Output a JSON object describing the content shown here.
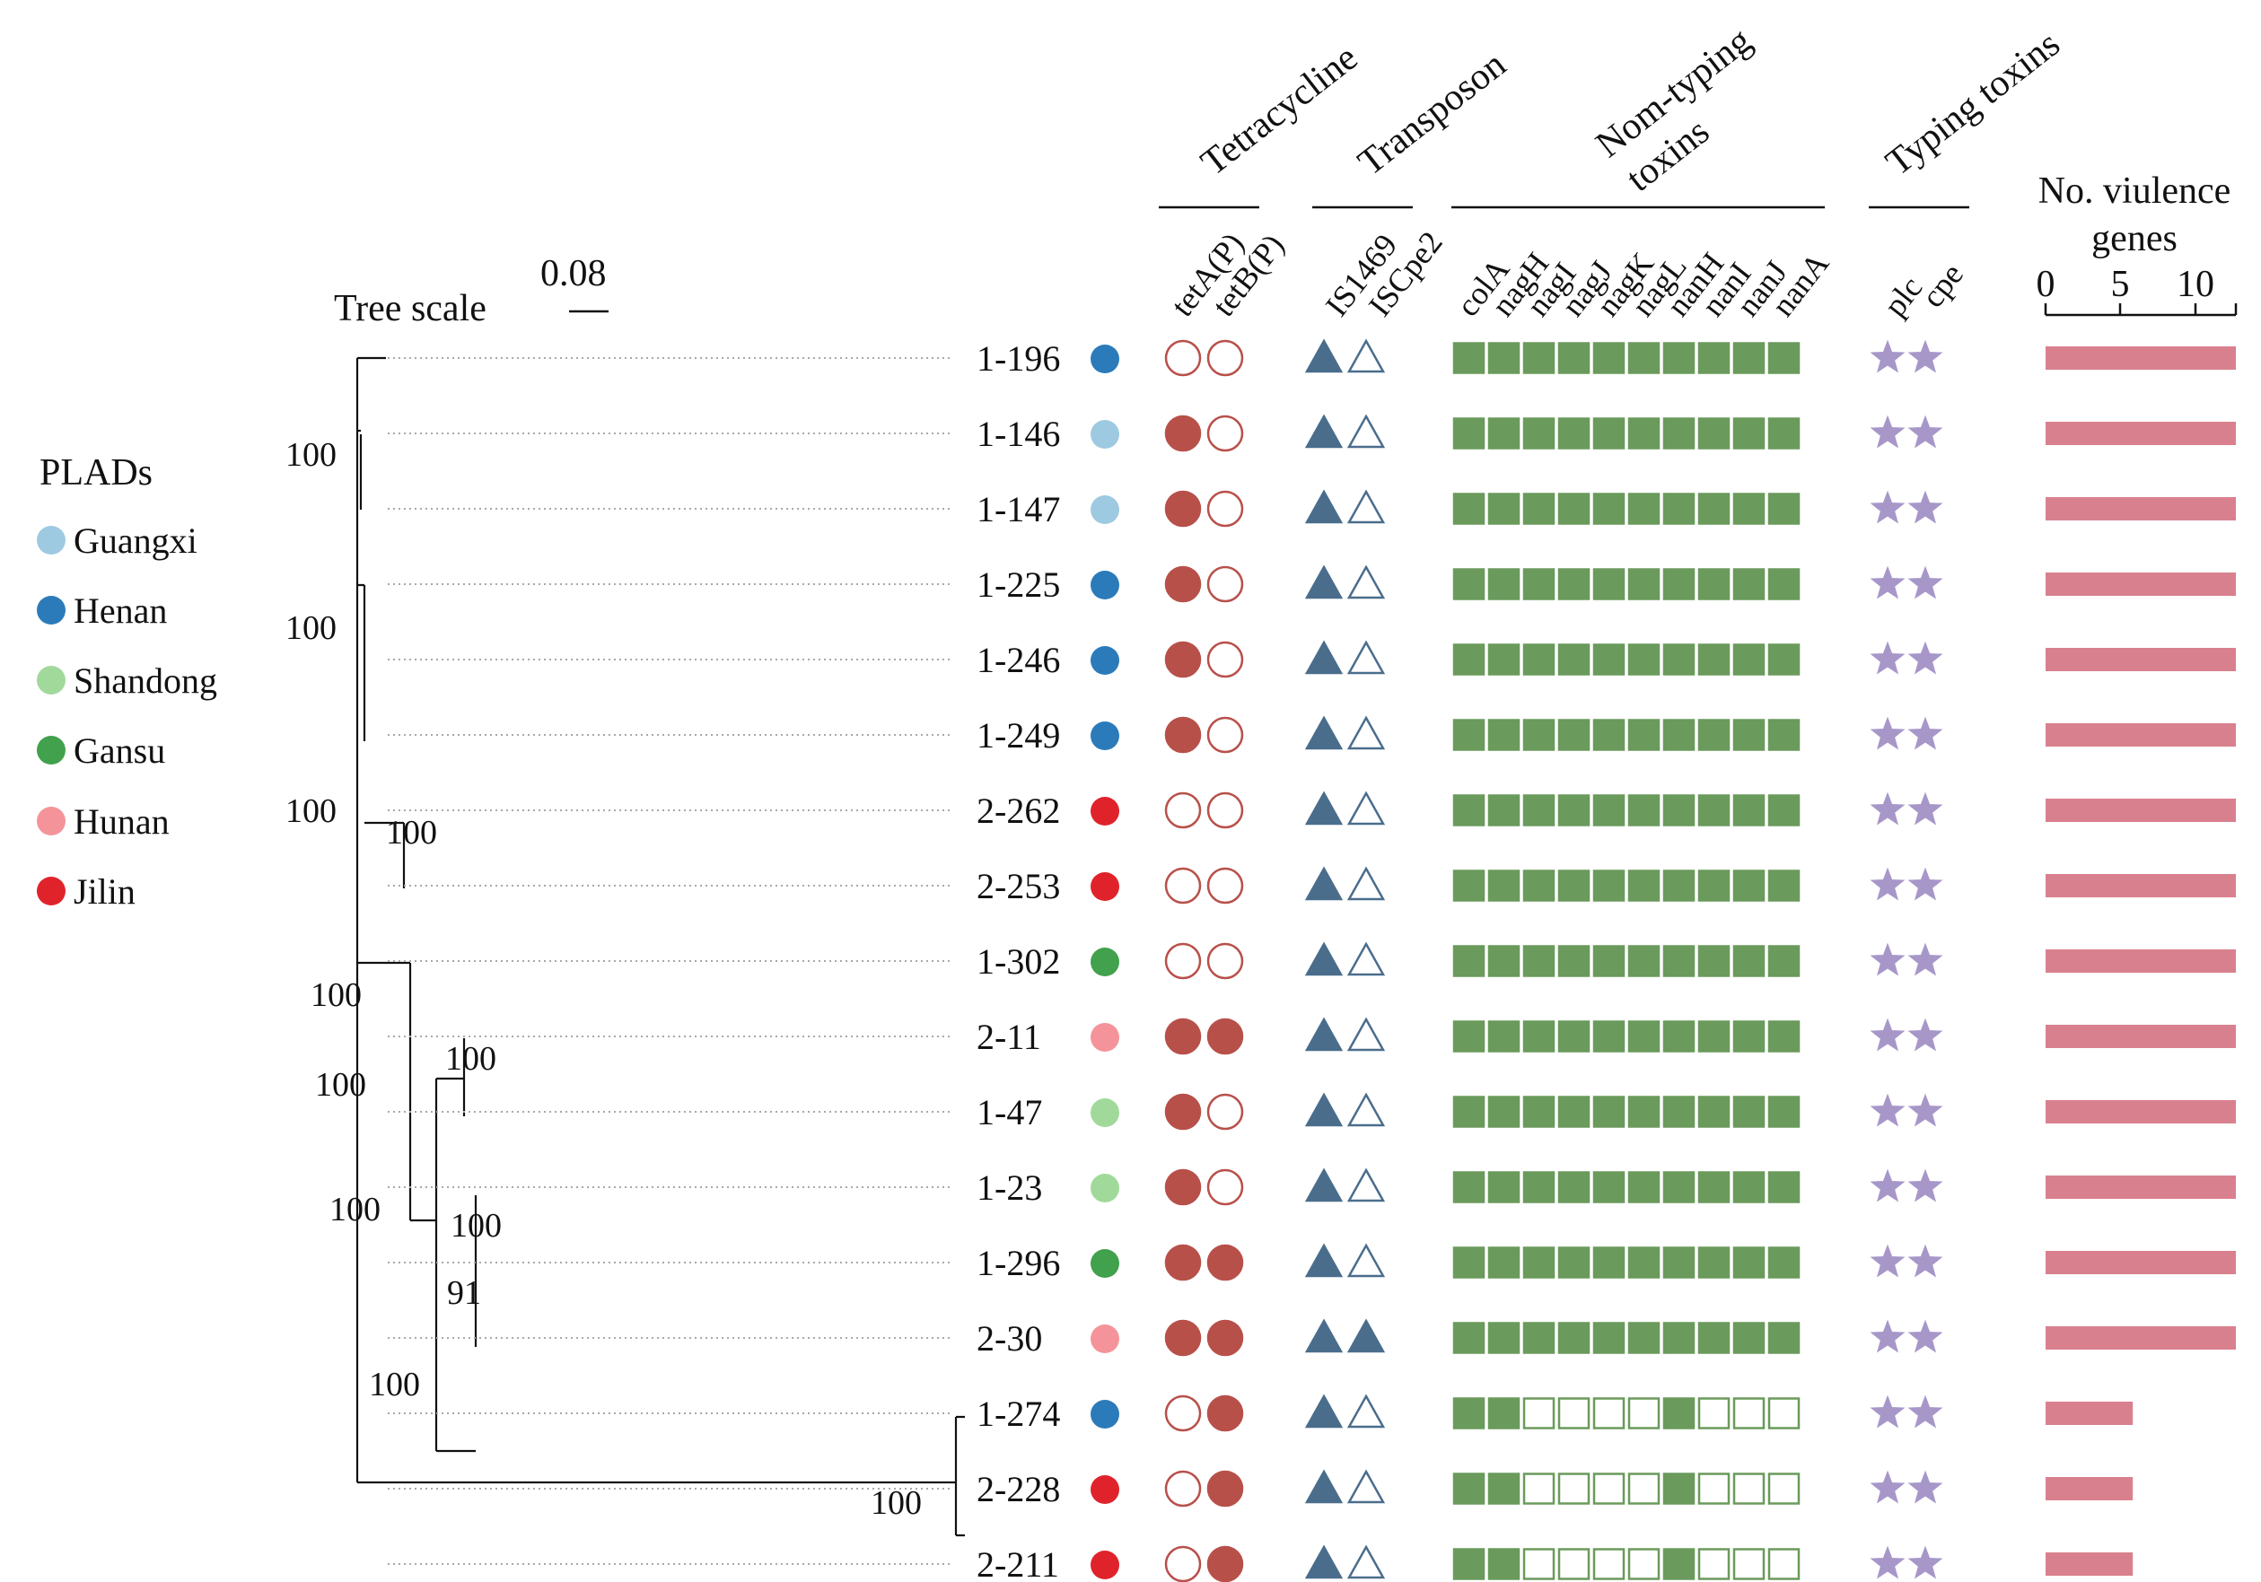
{
  "scale": {
    "label": "Tree scale",
    "value": "0.08"
  },
  "legend": {
    "title": "PLADs",
    "items": [
      {
        "label": "Guangxi",
        "color": "#9ecae1"
      },
      {
        "label": "Henan",
        "color": "#2b7bba"
      },
      {
        "label": "Shandong",
        "color": "#a1d99b"
      },
      {
        "label": "Gansu",
        "color": "#41a14c"
      },
      {
        "label": "Hunan",
        "color": "#f4949a"
      },
      {
        "label": "Jilin",
        "color": "#e0232b"
      }
    ]
  },
  "columns": {
    "tetracycline": {
      "title": "Tetracycline",
      "genes": [
        "tetA(P)",
        "tetB(P)"
      ]
    },
    "transposon": {
      "title": "Transposon",
      "genes": [
        "IS1469",
        "ISCpe2"
      ]
    },
    "nontyping": {
      "title_line1": "Nom-typing",
      "title_line2": "toxins",
      "genes": [
        "colA",
        "nagH",
        "nagI",
        "nagJ",
        "nagK",
        "nagL",
        "nanH",
        "nanI",
        "nanJ",
        "nanA"
      ]
    },
    "typing": {
      "title": "Typing toxins",
      "genes": [
        "plc",
        "cpe"
      ]
    },
    "virulence": {
      "title_line1": "No. viulence",
      "title_line2": "genes",
      "ticks": [
        "0",
        "5",
        "10"
      ],
      "max": 12
    }
  },
  "colors": {
    "tet": "#b8504a",
    "triangle": "#4a6d8c",
    "square": "#6a9a5c",
    "star": "#a797c9",
    "bar": "#d9808e"
  },
  "tips": [
    {
      "name": "1-196",
      "region": "Henan",
      "tet": [
        0,
        0
      ],
      "tn": [
        1,
        0
      ],
      "nt": [
        1,
        1,
        1,
        1,
        1,
        1,
        1,
        1,
        1,
        1
      ],
      "ty": [
        1,
        1
      ],
      "count": 12
    },
    {
      "name": "1-146",
      "region": "Guangxi",
      "tet": [
        1,
        0
      ],
      "tn": [
        1,
        0
      ],
      "nt": [
        1,
        1,
        1,
        1,
        1,
        1,
        1,
        1,
        1,
        1
      ],
      "ty": [
        1,
        1
      ],
      "count": 12
    },
    {
      "name": "1-147",
      "region": "Guangxi",
      "tet": [
        1,
        0
      ],
      "tn": [
        1,
        0
      ],
      "nt": [
        1,
        1,
        1,
        1,
        1,
        1,
        1,
        1,
        1,
        1
      ],
      "ty": [
        1,
        1
      ],
      "count": 12
    },
    {
      "name": "1-225",
      "region": "Henan",
      "tet": [
        1,
        0
      ],
      "tn": [
        1,
        0
      ],
      "nt": [
        1,
        1,
        1,
        1,
        1,
        1,
        1,
        1,
        1,
        1
      ],
      "ty": [
        1,
        1
      ],
      "count": 12
    },
    {
      "name": "1-246",
      "region": "Henan",
      "tet": [
        1,
        0
      ],
      "tn": [
        1,
        0
      ],
      "nt": [
        1,
        1,
        1,
        1,
        1,
        1,
        1,
        1,
        1,
        1
      ],
      "ty": [
        1,
        1
      ],
      "count": 12
    },
    {
      "name": "1-249",
      "region": "Henan",
      "tet": [
        1,
        0
      ],
      "tn": [
        1,
        0
      ],
      "nt": [
        1,
        1,
        1,
        1,
        1,
        1,
        1,
        1,
        1,
        1
      ],
      "ty": [
        1,
        1
      ],
      "count": 12
    },
    {
      "name": "2-262",
      "region": "Jilin",
      "tet": [
        0,
        0
      ],
      "tn": [
        1,
        0
      ],
      "nt": [
        1,
        1,
        1,
        1,
        1,
        1,
        1,
        1,
        1,
        1
      ],
      "ty": [
        1,
        1
      ],
      "count": 12
    },
    {
      "name": "2-253",
      "region": "Jilin",
      "tet": [
        0,
        0
      ],
      "tn": [
        1,
        0
      ],
      "nt": [
        1,
        1,
        1,
        1,
        1,
        1,
        1,
        1,
        1,
        1
      ],
      "ty": [
        1,
        1
      ],
      "count": 12
    },
    {
      "name": "1-302",
      "region": "Gansu",
      "tet": [
        0,
        0
      ],
      "tn": [
        1,
        0
      ],
      "nt": [
        1,
        1,
        1,
        1,
        1,
        1,
        1,
        1,
        1,
        1
      ],
      "ty": [
        1,
        1
      ],
      "count": 12
    },
    {
      "name": "2-11",
      "region": "Hunan",
      "tet": [
        1,
        1
      ],
      "tn": [
        1,
        0
      ],
      "nt": [
        1,
        1,
        1,
        1,
        1,
        1,
        1,
        1,
        1,
        1
      ],
      "ty": [
        1,
        1
      ],
      "count": 12
    },
    {
      "name": "1-47",
      "region": "Shandong",
      "tet": [
        1,
        0
      ],
      "tn": [
        1,
        0
      ],
      "nt": [
        1,
        1,
        1,
        1,
        1,
        1,
        1,
        1,
        1,
        1
      ],
      "ty": [
        1,
        1
      ],
      "count": 12
    },
    {
      "name": "1-23",
      "region": "Shandong",
      "tet": [
        1,
        0
      ],
      "tn": [
        1,
        0
      ],
      "nt": [
        1,
        1,
        1,
        1,
        1,
        1,
        1,
        1,
        1,
        1
      ],
      "ty": [
        1,
        1
      ],
      "count": 12
    },
    {
      "name": "1-296",
      "region": "Gansu",
      "tet": [
        1,
        1
      ],
      "tn": [
        1,
        0
      ],
      "nt": [
        1,
        1,
        1,
        1,
        1,
        1,
        1,
        1,
        1,
        1
      ],
      "ty": [
        1,
        1
      ],
      "count": 12
    },
    {
      "name": "2-30",
      "region": "Hunan",
      "tet": [
        1,
        1
      ],
      "tn": [
        1,
        1
      ],
      "nt": [
        1,
        1,
        1,
        1,
        1,
        1,
        1,
        1,
        1,
        1
      ],
      "ty": [
        1,
        1
      ],
      "count": 12
    },
    {
      "name": "1-274",
      "region": "Henan",
      "tet": [
        0,
        1
      ],
      "tn": [
        1,
        0
      ],
      "nt": [
        1,
        1,
        0,
        0,
        0,
        0,
        1,
        0,
        0,
        0
      ],
      "ty": [
        1,
        1
      ],
      "count": 5.5
    },
    {
      "name": "2-228",
      "region": "Jilin",
      "tet": [
        0,
        1
      ],
      "tn": [
        1,
        0
      ],
      "nt": [
        1,
        1,
        0,
        0,
        0,
        0,
        1,
        0,
        0,
        0
      ],
      "ty": [
        1,
        1
      ],
      "count": 5.5
    },
    {
      "name": "2-211",
      "region": "Jilin",
      "tet": [
        0,
        1
      ],
      "tn": [
        1,
        0
      ],
      "nt": [
        1,
        1,
        0,
        0,
        0,
        0,
        1,
        0,
        0,
        0
      ],
      "ty": [
        1,
        1
      ],
      "count": 5.5
    }
  ],
  "support_values": [
    "100",
    "100",
    "100",
    "100",
    "100",
    "100",
    "100",
    "100",
    "91",
    "100",
    "100",
    "100"
  ]
}
